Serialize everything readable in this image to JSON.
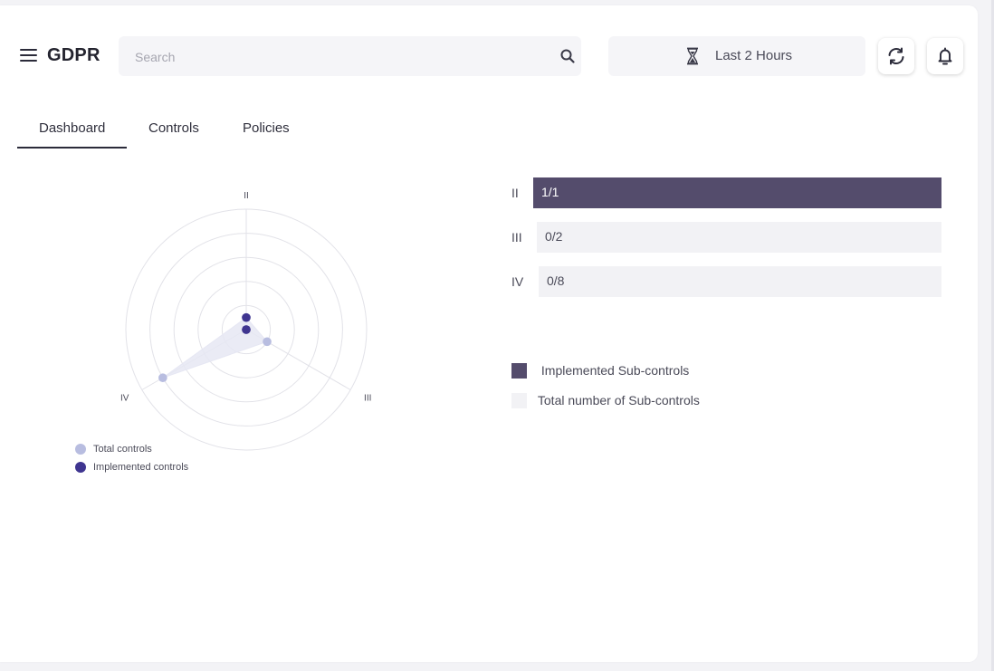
{
  "header": {
    "title": "GDPR",
    "search_placeholder": "Search",
    "time_range": "Last 2 Hours",
    "icons": [
      "menu-icon",
      "search-icon",
      "hourglass-icon",
      "refresh-icon",
      "bell-icon"
    ]
  },
  "tabs": [
    {
      "label": "Dashboard",
      "active": true
    },
    {
      "label": "Controls",
      "active": false
    },
    {
      "label": "Policies",
      "active": false
    }
  ],
  "radar": {
    "axes": [
      "II",
      "III",
      "IV"
    ],
    "legend": {
      "total": "Total controls",
      "implemented": "Implemented controls"
    },
    "colors": {
      "total": "#b8bde0",
      "implemented": "#3f3590",
      "fill": "#e6e7f3",
      "grid": "#e2e2e8"
    }
  },
  "bars": [
    {
      "label": "II",
      "text": "1/1",
      "implemented": 1,
      "total": 1
    },
    {
      "label": "III",
      "text": "0/2",
      "implemented": 0,
      "total": 2
    },
    {
      "label": "IV",
      "text": "0/8",
      "implemented": 0,
      "total": 8
    }
  ],
  "bars_legend": {
    "implemented": "Implemented Sub-controls",
    "total": "Total number of Sub-controls",
    "colors": {
      "implemented": "#544c6c",
      "total": "#f2f2f5"
    }
  },
  "chart_data": {
    "type": "radar",
    "categories": [
      "II",
      "III",
      "IV"
    ],
    "series": [
      {
        "name": "Total controls",
        "values": [
          1,
          2,
          8
        ]
      },
      {
        "name": "Implemented controls",
        "values": [
          1,
          0,
          0
        ]
      }
    ],
    "rlim": [
      0,
      10
    ],
    "grid": true,
    "legend_position": "bottom-left"
  }
}
